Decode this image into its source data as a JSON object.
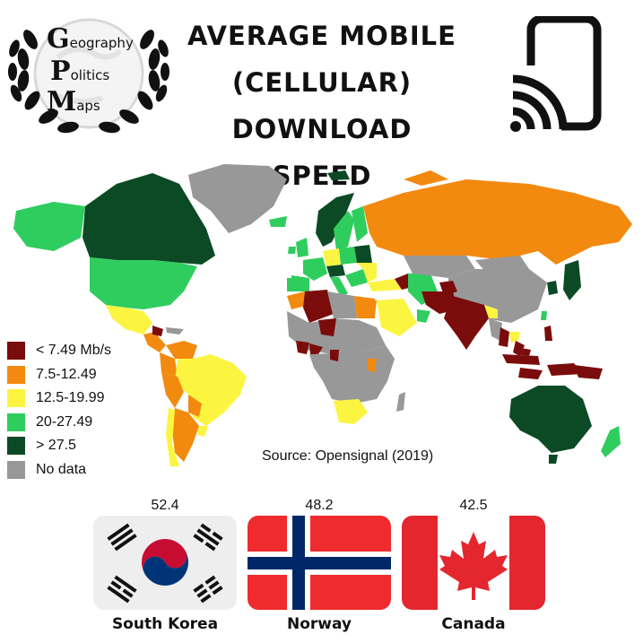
{
  "logo": {
    "line1_initial": "G",
    "line1_rest": "eography",
    "line2_initial": "P",
    "line2_rest": "olitics",
    "line3_initial": "M",
    "line3_rest": "aps"
  },
  "title": {
    "line1": "AVERAGE MOBILE",
    "line2": "(CELLULAR)",
    "line3": "DOWNLOAD SPEED"
  },
  "icons": {
    "logo": "laurel-wreath-globe-icon",
    "device": "phone-signal-icon"
  },
  "legend": {
    "items": [
      {
        "label": "< 7.49 Mb/s",
        "color": "#7a0c0c"
      },
      {
        "label": "7.5-12.49",
        "color": "#f28a0f"
      },
      {
        "label": "12.5-19.99",
        "color": "#fbf542"
      },
      {
        "label": "20-27.49",
        "color": "#2fcd5e"
      },
      {
        "label": "> 27.5",
        "color": "#0b4a25"
      },
      {
        "label": "No data",
        "color": "#989898"
      }
    ]
  },
  "source": "Source: Opensignal (2019)",
  "top_countries": [
    {
      "country": "South Korea",
      "speed": "52.4"
    },
    {
      "country": "Norway",
      "speed": "48.2"
    },
    {
      "country": "Canada",
      "speed": "42.5"
    }
  ]
}
